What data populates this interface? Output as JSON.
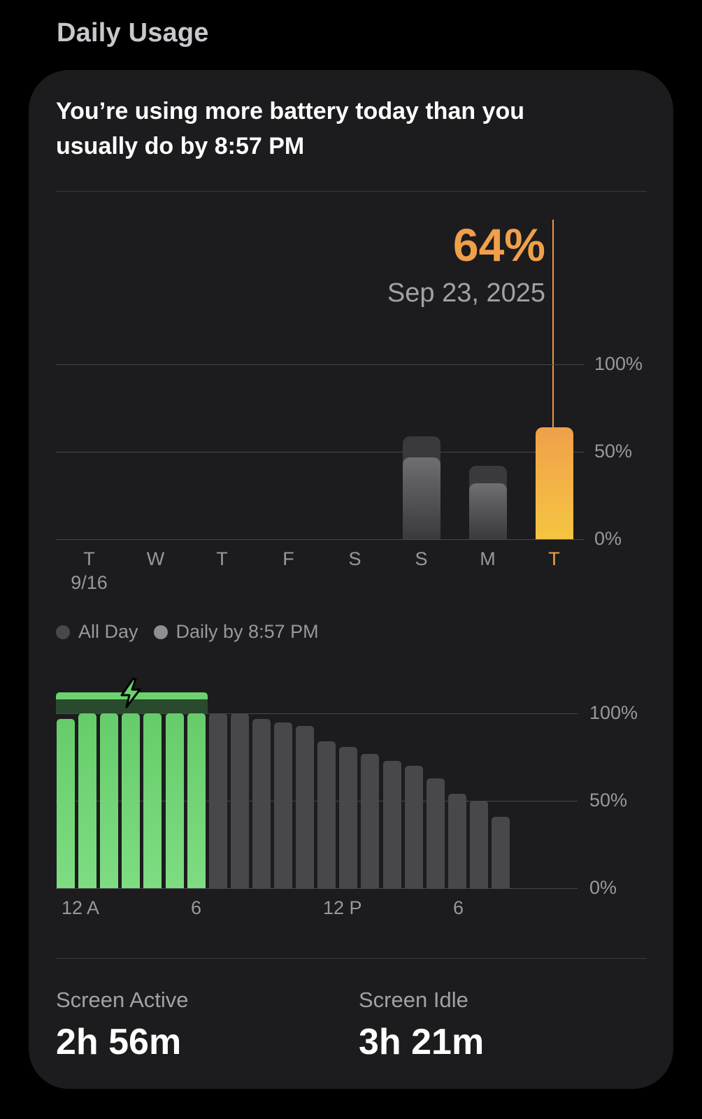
{
  "section_title": "Daily Usage",
  "headline": "You’re using more battery today than you usually do by 8:57 PM",
  "callout": {
    "percent": "64%",
    "date": "Sep 23, 2025"
  },
  "weekly": {
    "y_ticks": [
      "100%",
      "50%",
      "0%"
    ],
    "days": [
      {
        "label": "T",
        "sublabel": "9/16",
        "all_day": 0,
        "by_time": 0
      },
      {
        "label": "W",
        "sublabel": "",
        "all_day": 0,
        "by_time": 0
      },
      {
        "label": "T",
        "sublabel": "",
        "all_day": 0,
        "by_time": 0
      },
      {
        "label": "F",
        "sublabel": "",
        "all_day": 0,
        "by_time": 0
      },
      {
        "label": "S",
        "sublabel": "",
        "all_day": 0,
        "by_time": 0
      },
      {
        "label": "S",
        "sublabel": "",
        "all_day": 59,
        "by_time": 47
      },
      {
        "label": "M",
        "sublabel": "",
        "all_day": 42,
        "by_time": 32
      },
      {
        "label": "T",
        "sublabel": "",
        "all_day": 64,
        "by_time": 64,
        "selected": true
      }
    ]
  },
  "legend": [
    {
      "label": "All Day",
      "color": "#48484a"
    },
    {
      "label": "Daily by 8:57 PM",
      "color": "#8e8e93"
    }
  ],
  "hourly": {
    "y_ticks": [
      "100%",
      "50%",
      "0%"
    ],
    "x_ticks": [
      "12 A",
      "6",
      "12 P",
      "6"
    ],
    "levels": [
      97,
      100,
      100,
      100,
      100,
      100,
      100,
      100,
      100,
      97,
      95,
      93,
      84,
      81,
      77,
      73,
      70,
      63,
      54,
      50,
      41
    ],
    "charging_hours": 7
  },
  "colors": {
    "accent_orange": "#f0a04a",
    "charging_green": "#6cd26f",
    "bar_gray": "#48484a"
  },
  "stats": [
    {
      "label": "Screen Active",
      "value": "2h 56m"
    },
    {
      "label": "Screen Idle",
      "value": "3h 21m"
    }
  ]
}
